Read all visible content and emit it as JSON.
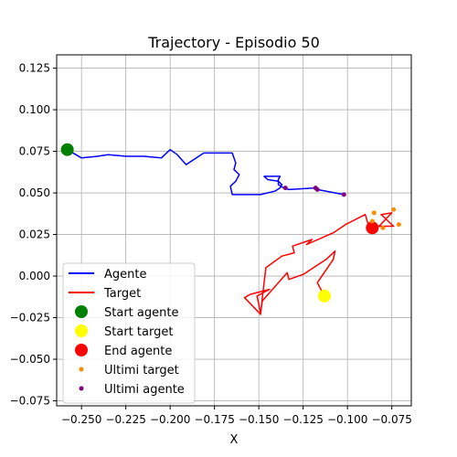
{
  "chart_data": {
    "type": "line",
    "title": "Trajectory - Episodio 50",
    "xlabel": "X",
    "ylabel": "",
    "xlim": [
      -0.264,
      -0.064
    ],
    "ylim": [
      -0.078,
      0.133
    ],
    "grid": true,
    "legend_position": "lower-left",
    "xticks": [
      -0.25,
      -0.225,
      -0.2,
      -0.175,
      -0.15,
      -0.125,
      -0.1,
      -0.075
    ],
    "xtick_labels": [
      "−0.250",
      "−0.225",
      "−0.200",
      "−0.175",
      "−0.150",
      "−0.125",
      "−0.100",
      "−0.075"
    ],
    "yticks": [
      -0.075,
      -0.05,
      -0.025,
      0.0,
      0.025,
      0.05,
      0.075,
      0.1,
      0.125
    ],
    "ytick_labels": [
      "−0.075",
      "−0.050",
      "−0.025",
      "0.000",
      "0.025",
      "0.050",
      "0.075",
      "0.100",
      "0.125"
    ],
    "series": [
      {
        "name": "Agente",
        "color": "#0000ff",
        "x": [
          -0.258,
          -0.25,
          -0.241,
          -0.235,
          -0.225,
          -0.215,
          -0.205,
          -0.2,
          -0.196,
          -0.191,
          -0.181,
          -0.165,
          -0.163,
          -0.164,
          -0.161,
          -0.163,
          -0.166,
          -0.165,
          -0.149,
          -0.141,
          -0.138,
          -0.137,
          -0.139,
          -0.145,
          -0.147,
          -0.138,
          -0.139,
          -0.139,
          -0.136,
          -0.133,
          -0.118,
          -0.117,
          -0.102
        ],
        "y": [
          0.076,
          0.071,
          0.072,
          0.073,
          0.072,
          0.072,
          0.071,
          0.076,
          0.073,
          0.067,
          0.074,
          0.074,
          0.068,
          0.064,
          0.061,
          0.057,
          0.054,
          0.049,
          0.049,
          0.051,
          0.053,
          0.055,
          0.057,
          0.058,
          0.06,
          0.06,
          0.058,
          0.055,
          0.053,
          0.052,
          0.053,
          0.052,
          0.049
        ]
      },
      {
        "name": "Target",
        "color": "#ff0000",
        "x": [
          -0.113,
          -0.117,
          -0.108,
          -0.107,
          -0.112,
          -0.125,
          -0.133,
          -0.134,
          -0.148,
          -0.149,
          -0.151,
          -0.144,
          -0.155,
          -0.158,
          -0.149,
          -0.148,
          -0.146,
          -0.137,
          -0.13,
          -0.131,
          -0.12,
          -0.123,
          -0.108,
          -0.101,
          -0.09,
          -0.088,
          -0.074,
          -0.08,
          -0.081,
          -0.075,
          -0.084
        ],
        "y": [
          -0.012,
          -0.004,
          0.01,
          0.015,
          0.01,
          0.001,
          -0.002,
          0.002,
          -0.015,
          -0.022,
          -0.012,
          -0.008,
          -0.011,
          -0.013,
          -0.023,
          -0.013,
          0.005,
          0.012,
          0.014,
          0.018,
          0.022,
          0.019,
          0.026,
          0.031,
          0.037,
          0.03,
          0.03,
          0.036,
          0.037,
          0.038,
          0.028
        ]
      }
    ],
    "markers": [
      {
        "name": "Start agente",
        "x": -0.258,
        "y": 0.076,
        "color": "#008000",
        "size": "large"
      },
      {
        "name": "Start target",
        "x": -0.113,
        "y": -0.012,
        "color": "#ffff00",
        "size": "large"
      },
      {
        "name": "End agente",
        "x": -0.086,
        "y": 0.029,
        "color": "#ff0000",
        "size": "large"
      }
    ],
    "scatter": [
      {
        "name": "Ultimi target",
        "color": "#ff8c00",
        "x": [
          -0.085,
          -0.086,
          -0.08,
          -0.074,
          -0.071
        ],
        "y": [
          0.038,
          0.033,
          0.029,
          0.04,
          0.031
        ]
      },
      {
        "name": "Ultimi agente",
        "color": "#800080",
        "x": [
          -0.135,
          -0.118,
          -0.117,
          -0.102
        ],
        "y": [
          0.053,
          0.053,
          0.052,
          0.049
        ]
      }
    ],
    "legend": [
      {
        "label": "Agente",
        "kind": "line",
        "color": "#0000ff"
      },
      {
        "label": "Target",
        "kind": "line",
        "color": "#ff0000"
      },
      {
        "label": "Start agente",
        "kind": "bigdot",
        "color": "#008000"
      },
      {
        "label": "Start target",
        "kind": "bigdot",
        "color": "#ffff00"
      },
      {
        "label": "End agente",
        "kind": "bigdot",
        "color": "#ff0000"
      },
      {
        "label": "Ultimi target",
        "kind": "smalldot",
        "color": "#ff8c00"
      },
      {
        "label": "Ultimi agente",
        "kind": "smalldot",
        "color": "#800080"
      }
    ]
  }
}
